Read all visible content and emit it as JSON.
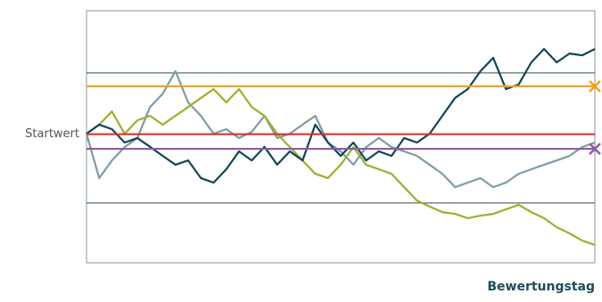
{
  "chart_data": {
    "type": "line",
    "xlabel": "Bewertungstag",
    "x": [
      0,
      1,
      2,
      3,
      4,
      5,
      6,
      7,
      8,
      9,
      10,
      11,
      12,
      13,
      14,
      15,
      16,
      17,
      18,
      19,
      20,
      21,
      22,
      23,
      24,
      25,
      26,
      27,
      28,
      29,
      30,
      31,
      32,
      33,
      34,
      35,
      36,
      37,
      38,
      39,
      40
    ],
    "xlim": [
      0,
      40
    ],
    "ylim": [
      49,
      149
    ],
    "yticks": [
      {
        "value": 100,
        "label": "Startwert"
      }
    ],
    "gridlines": [
      124.3,
      72.7
    ],
    "hlines": [
      {
        "value": 119,
        "color": "#f5a21b",
        "marker": "x"
      },
      {
        "value": 100,
        "color": "#e0302b"
      },
      {
        "value": 94.2,
        "color": "#8e5ba6",
        "marker": "x"
      }
    ],
    "series": [
      {
        "color": "#7d9ba8",
        "values": [
          100.2,
          82.6,
          89.6,
          94.9,
          98.5,
          110.8,
          116.1,
          125,
          112.6,
          107.3,
          100.2,
          102,
          98.5,
          100.9,
          107.3,
          98.5,
          100.2,
          103.8,
          107.3,
          96.7,
          93.2,
          87.9,
          94.9,
          98.5,
          94.9,
          93.2,
          91.4,
          87.9,
          84.3,
          79,
          80.8,
          82.6,
          79,
          80.8,
          84.3,
          86.1,
          87.9,
          89.6,
          91.4,
          94.9,
          96.7
        ]
      },
      {
        "color": "#9bb02c",
        "values": [
          100.2,
          103.8,
          109,
          100.2,
          105.5,
          107.3,
          103.8,
          107.3,
          110.8,
          114.4,
          117.9,
          112.6,
          117.9,
          110.8,
          107.3,
          100.2,
          94.9,
          89.6,
          84.3,
          82.6,
          87.9,
          94.9,
          87.9,
          86.1,
          84.3,
          79,
          73.7,
          71.3,
          69.1,
          68.4,
          66.7,
          67.7,
          68.4,
          70.2,
          72,
          69.1,
          66.7,
          63.1,
          60.7,
          57.8,
          56.1
        ]
      },
      {
        "color": "#0f4656",
        "values": [
          100.2,
          103.8,
          102,
          96.7,
          98.5,
          95,
          91.4,
          87.9,
          89.6,
          82.6,
          80.8,
          86.1,
          93.2,
          89.6,
          95,
          87.9,
          93.2,
          89.6,
          103.8,
          96.7,
          91.4,
          96.7,
          89.6,
          93.2,
          91.4,
          98.5,
          96.7,
          100.2,
          107.3,
          114.4,
          117.9,
          125,
          130.3,
          117.9,
          119.7,
          128.5,
          133.8,
          128.5,
          132,
          131.3,
          133.8
        ]
      }
    ]
  }
}
